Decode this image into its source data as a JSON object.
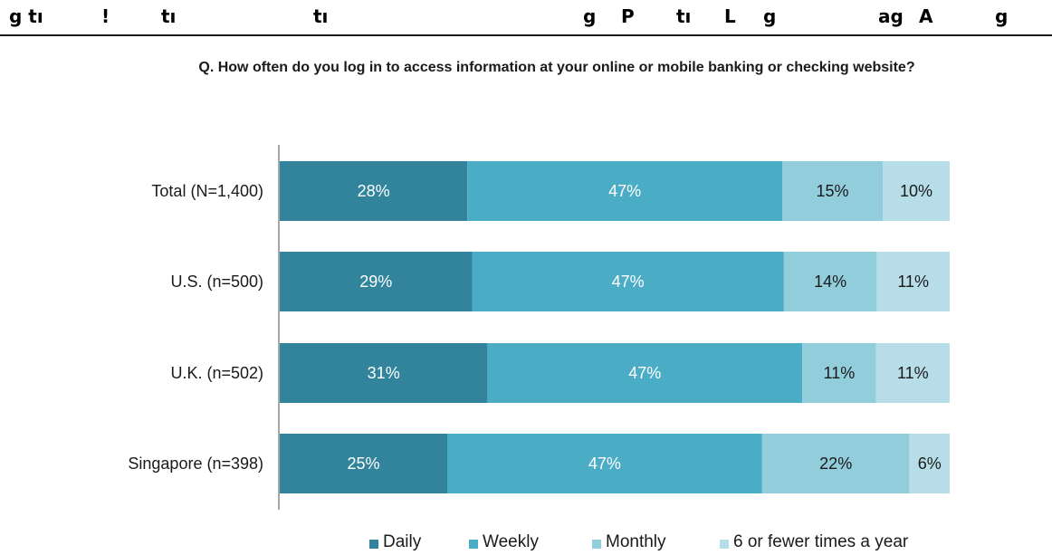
{
  "header": {
    "fragments": [
      "g tı",
      "!",
      "tı",
      "tı",
      "g",
      "P",
      "tı",
      "L",
      "g",
      "ag",
      "A",
      "g"
    ]
  },
  "chart_data": {
    "type": "bar",
    "orientation": "horizontal",
    "stacked": true,
    "title": "Q. How often do you log in to access information at your online or mobile banking or checking website?",
    "xlabel": "",
    "ylabel": "",
    "xlim": [
      0,
      100
    ],
    "grid": false,
    "legend_position": "bottom",
    "categories": [
      "Total (N=1,400)",
      "U.S. (n=500)",
      "U.K. (n=502)",
      "Singapore (n=398)"
    ],
    "series": [
      {
        "name": "Daily",
        "color": "#31849b",
        "values": [
          28,
          29,
          31,
          25
        ],
        "labels": [
          "28%",
          "29%",
          "31%",
          "25%"
        ]
      },
      {
        "name": "Weekly",
        "color": "#4bacc6",
        "values": [
          47,
          47,
          47,
          47
        ],
        "labels": [
          "47%",
          "47%",
          "47%",
          "47%"
        ]
      },
      {
        "name": "Monthly",
        "color": "#92cddc",
        "values": [
          15,
          14,
          11,
          22
        ],
        "labels": [
          "15%",
          "14%",
          "11%",
          "22%"
        ]
      },
      {
        "name": "6 or fewer times a year",
        "color": "#b7dee8",
        "values": [
          10,
          11,
          11,
          6
        ],
        "labels": [
          "10%",
          "11%",
          "11%",
          "6%"
        ]
      }
    ]
  }
}
